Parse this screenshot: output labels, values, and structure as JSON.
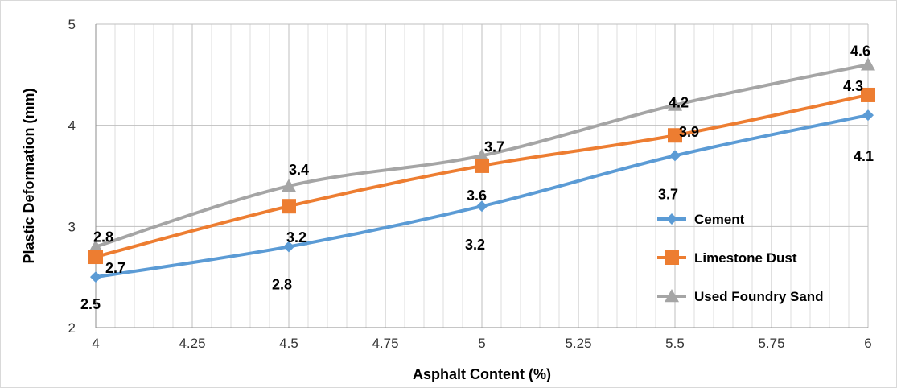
{
  "chart_data": {
    "type": "line",
    "title": "",
    "xlabel": "Asphalt Content (%)",
    "ylabel": "Plastic Deformation (mm)",
    "xlim": [
      4,
      6
    ],
    "ylim": [
      2,
      5
    ],
    "x_ticks": [
      "4",
      "4.25",
      "4.5",
      "4.75",
      "5",
      "5.25",
      "5.5",
      "5.75",
      "6"
    ],
    "y_ticks": [
      "2",
      "3",
      "4",
      "5"
    ],
    "x": [
      4,
      4.5,
      5,
      5.5,
      6
    ],
    "grid": "major and minor vertical gridlines, major horizontal gridlines",
    "legend_position": "right",
    "series": [
      {
        "name": "Cement",
        "values": [
          2.5,
          2.8,
          3.2,
          3.7,
          4.1
        ],
        "labels": [
          "2.5",
          "2.8",
          "3.2",
          "3.7",
          "4.1"
        ],
        "marker": "diamond",
        "color": "#5b9bd5"
      },
      {
        "name": "Limestone Dust",
        "values": [
          2.7,
          3.2,
          3.6,
          3.9,
          4.3
        ],
        "labels": [
          "2.7",
          "3.2",
          "3.6",
          "3.9",
          "4.3"
        ],
        "marker": "square",
        "color": "#ed7d31"
      },
      {
        "name": "Used Foundry Sand",
        "values": [
          2.8,
          3.4,
          3.7,
          4.2,
          4.6
        ],
        "labels": [
          "2.8",
          "3.4",
          "3.7",
          "4.2",
          "4.6"
        ],
        "marker": "triangle",
        "color": "#a5a5a5"
      }
    ]
  }
}
